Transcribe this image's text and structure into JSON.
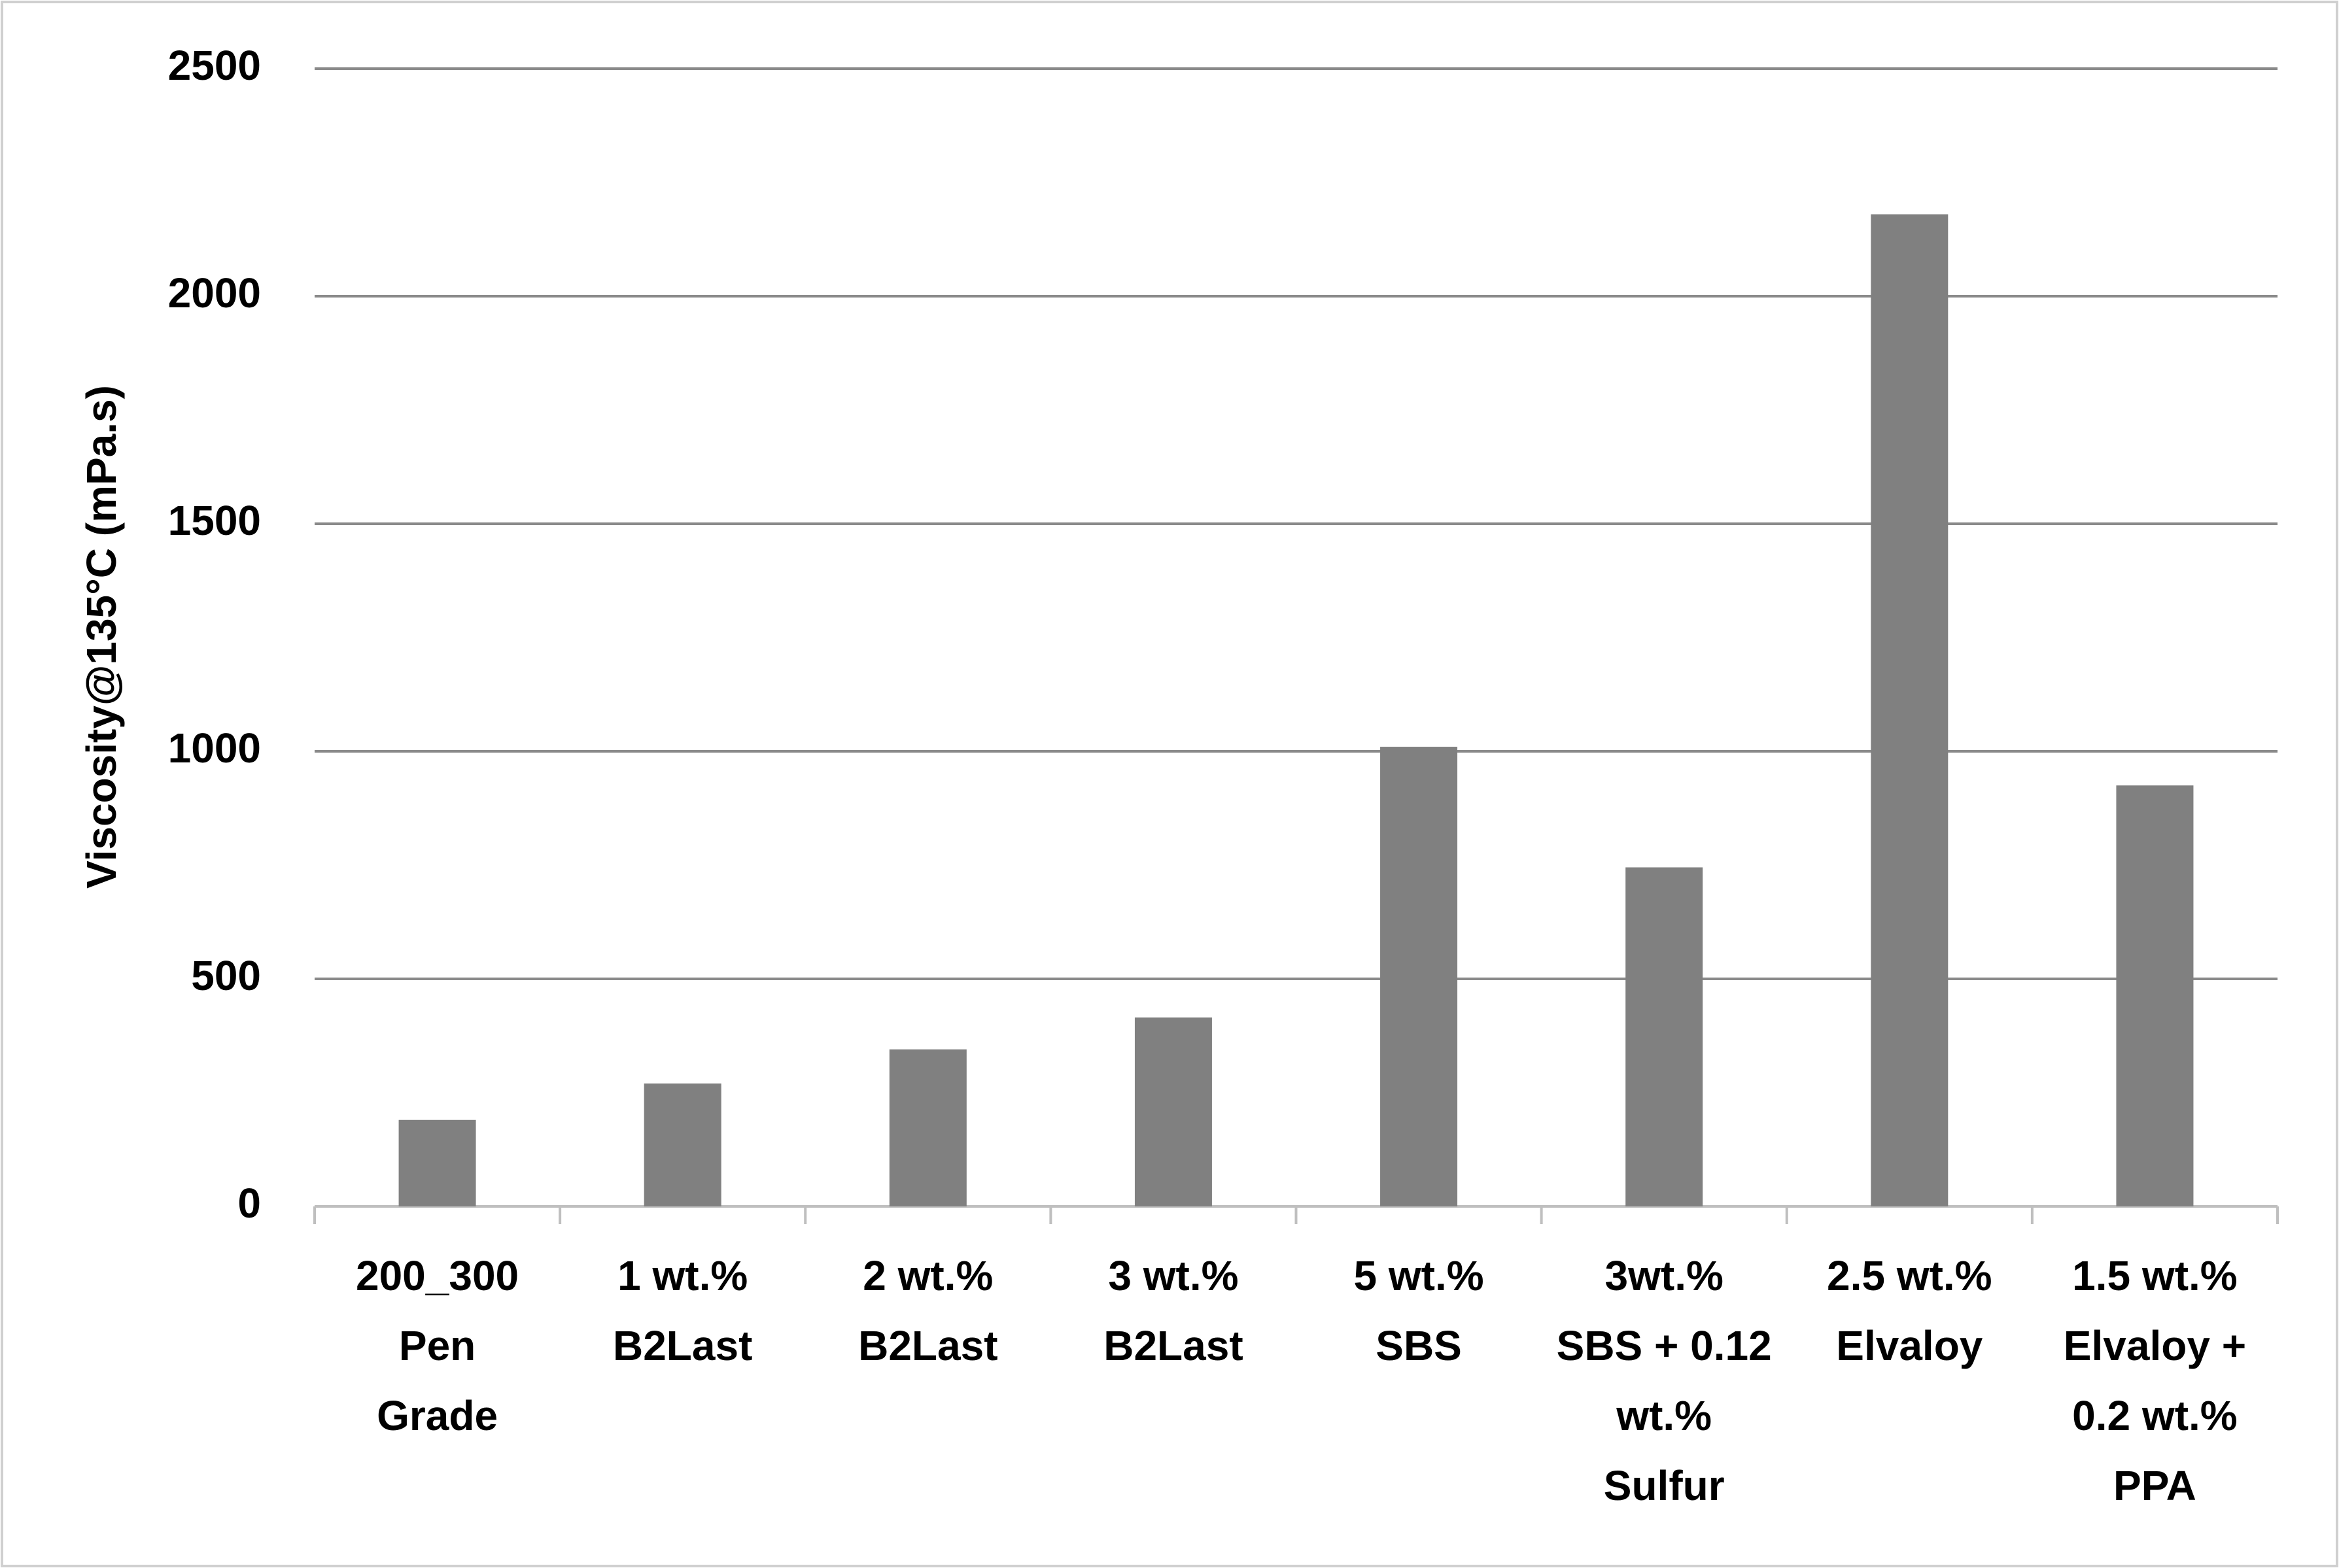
{
  "chart_data": {
    "type": "bar",
    "y_label": "Viscosity@135°C (mPa.s)",
    "categories": [
      "200_300\nPen\nGrade",
      "1 wt.%\nB2Last",
      "2 wt.%\nB2Last",
      "3 wt.%\nB2Last",
      "5 wt.%\nSBS",
      "3wt.%\nSBS + 0.12\nwt.%\nSulfur",
      "2.5 wt.%\nElvaloy",
      "1.5 wt.%\nElvaloy +\n0.2 wt.%\nPPA"
    ],
    "values": [
      190,
      270,
      345,
      415,
      1010,
      745,
      2180,
      925
    ],
    "color": "#808080",
    "ylim": [
      0,
      2500
    ],
    "yticks": [
      0,
      500,
      1000,
      1500,
      2000,
      2500
    ],
    "grid": true
  }
}
